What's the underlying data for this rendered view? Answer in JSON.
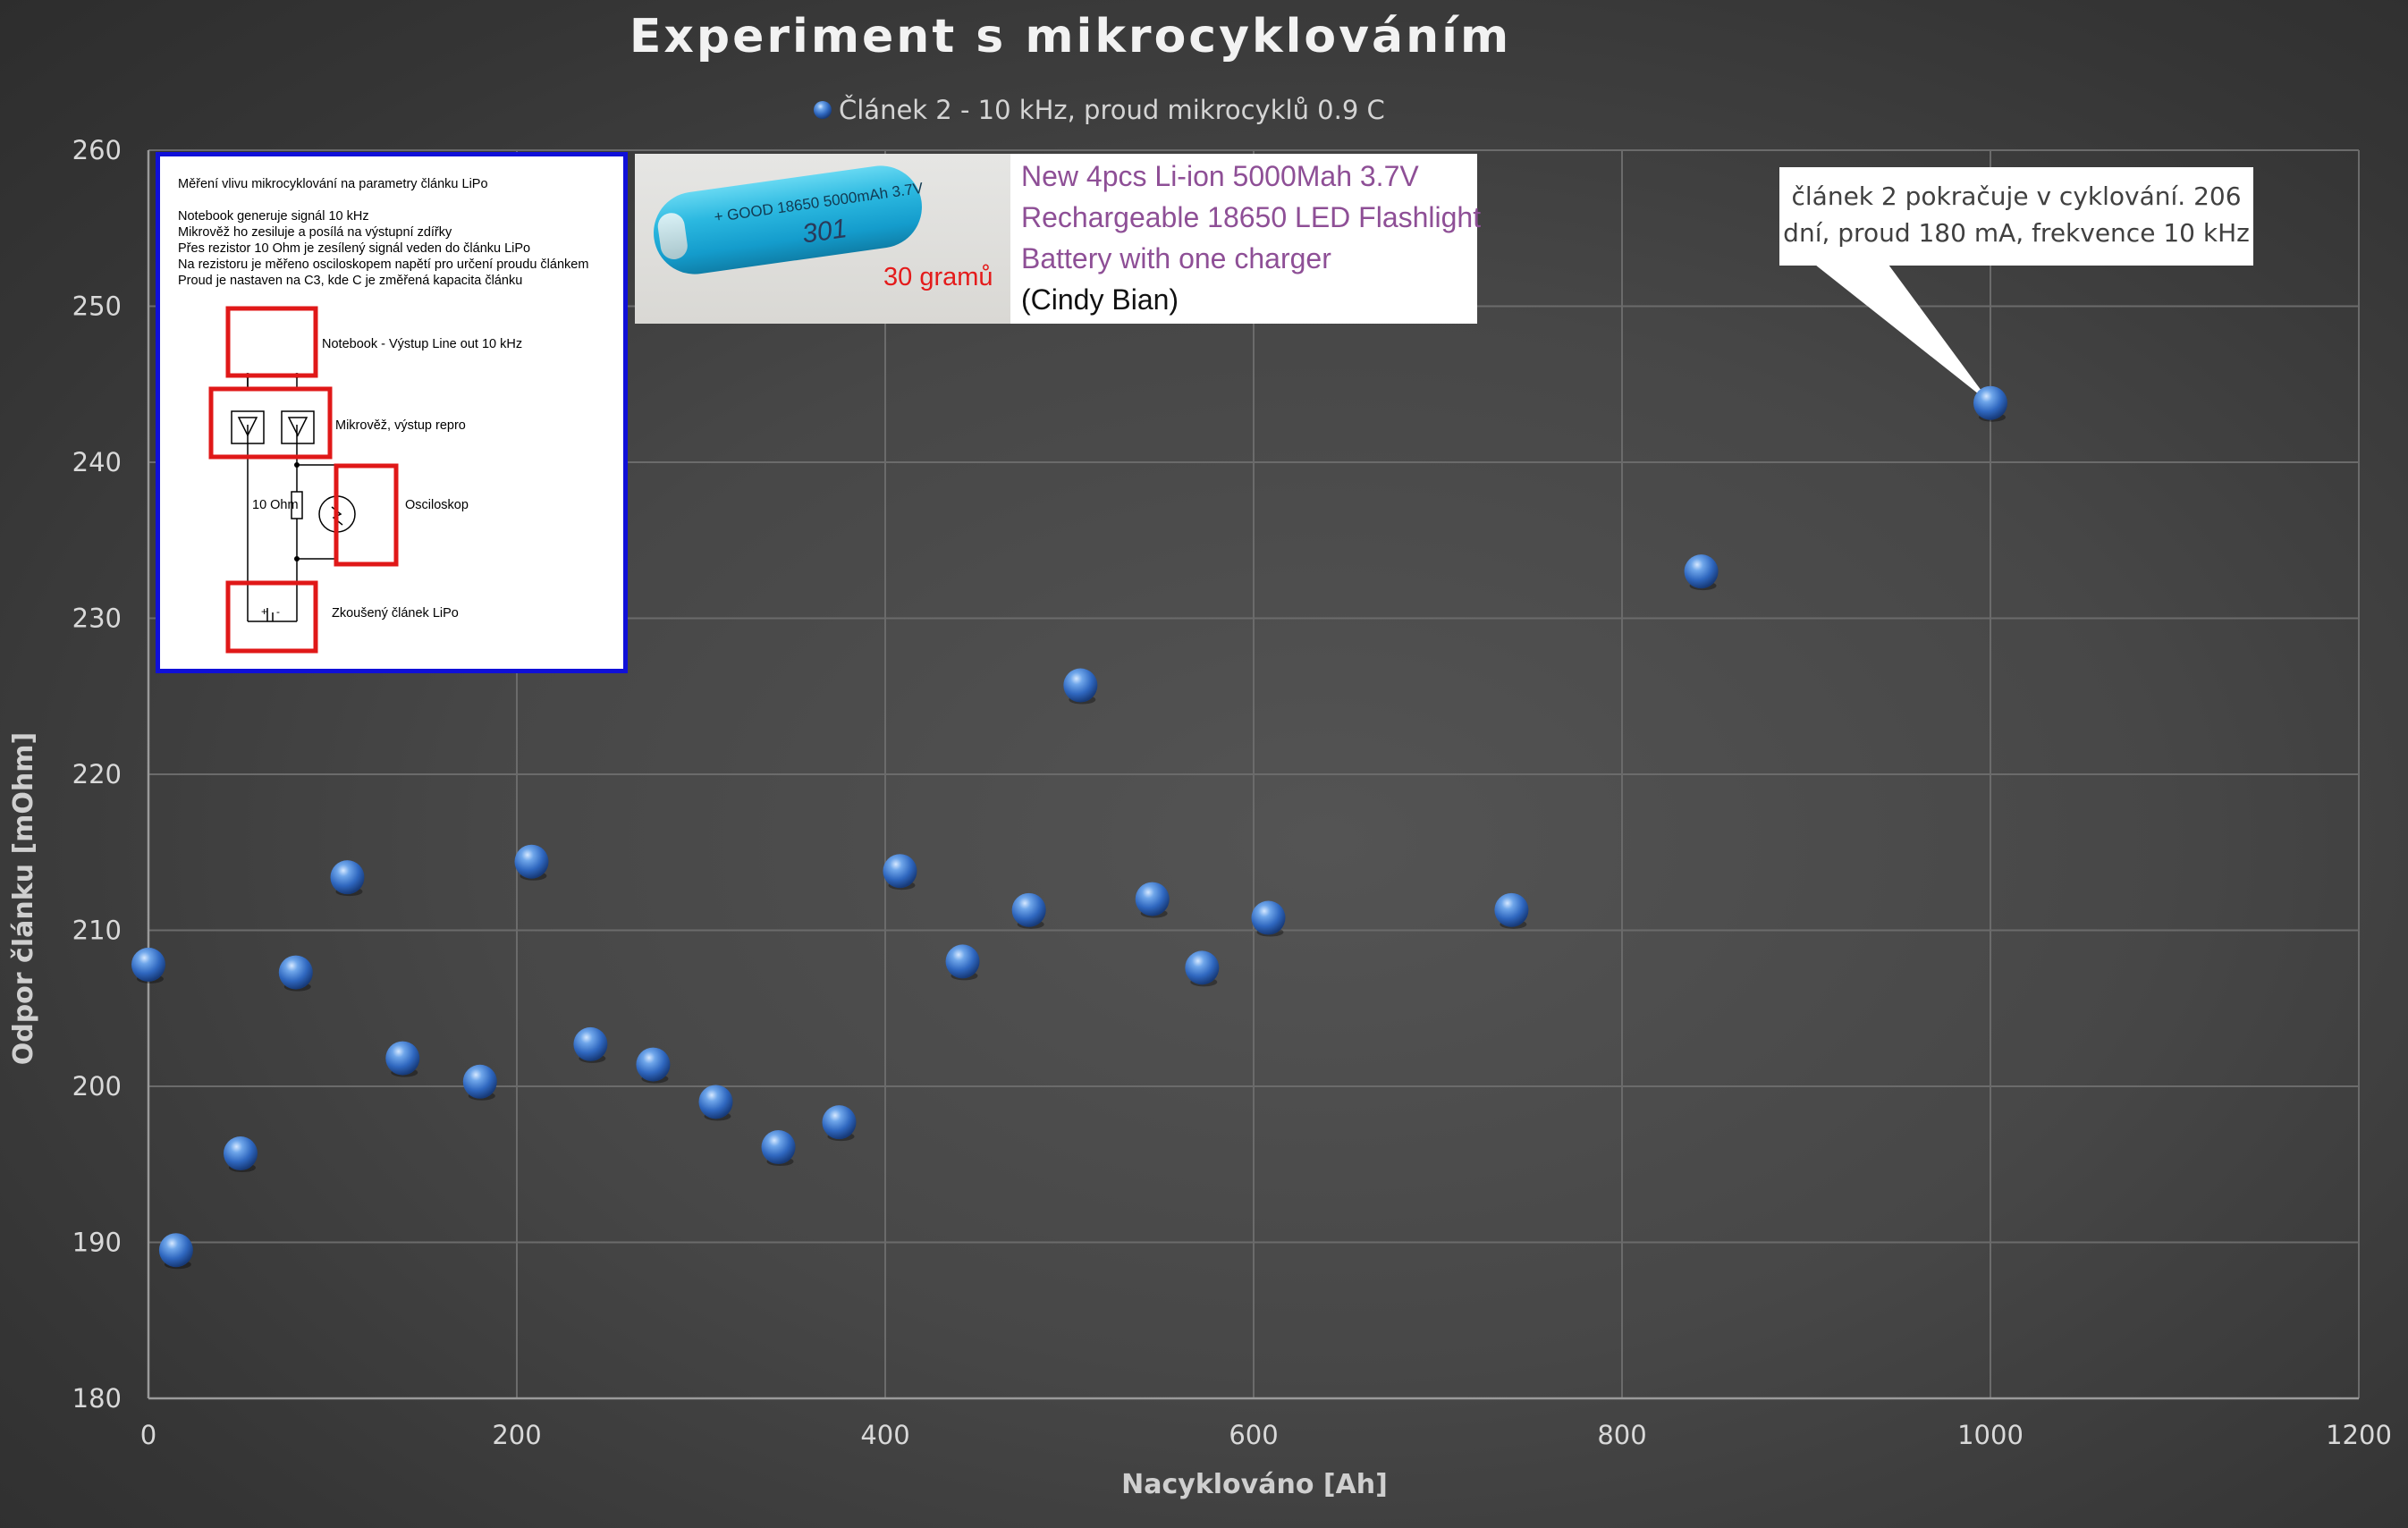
{
  "chart_data": {
    "type": "scatter",
    "title": "Experiment s mikrocyklováním",
    "xlabel": "Nacyklováno [Ah]",
    "ylabel": "Odpor článku [mOhm]",
    "xlim": [
      0,
      1200
    ],
    "ylim": [
      180,
      260
    ],
    "x_ticks": [
      "0",
      "200",
      "400",
      "600",
      "800",
      "1000",
      "1200"
    ],
    "y_ticks": [
      "180",
      "190",
      "200",
      "210",
      "220",
      "230",
      "240",
      "250",
      "260"
    ],
    "grid": true,
    "legend_position": "top-center",
    "series": [
      {
        "name": "Článek 2 - 10 kHz, proud mikrocyklů 0.9 C",
        "color": "#3a78d0",
        "points": [
          [
            0,
            207.8
          ],
          [
            15,
            189.5
          ],
          [
            50,
            195.7
          ],
          [
            80,
            207.3
          ],
          [
            108,
            213.4
          ],
          [
            138,
            201.8
          ],
          [
            180,
            200.3
          ],
          [
            208,
            214.4
          ],
          [
            240,
            202.7
          ],
          [
            274,
            201.4
          ],
          [
            308,
            199.0
          ],
          [
            342,
            196.1
          ],
          [
            375,
            197.7
          ],
          [
            408,
            213.8
          ],
          [
            442,
            208.0
          ],
          [
            478,
            211.3
          ],
          [
            506,
            225.7
          ],
          [
            545,
            212.0
          ],
          [
            572,
            207.6
          ],
          [
            608,
            210.8
          ],
          [
            740,
            211.3
          ],
          [
            843,
            233.0
          ],
          [
            1000,
            243.8
          ]
        ]
      }
    ],
    "annotation": {
      "lines": [
        "článek 2 pokračuje v cyklování. 206",
        "dní, proud 180 mA, frekvence 10 kHz"
      ],
      "points_to": [
        1000,
        243.8
      ]
    }
  },
  "schematic": {
    "title": "Měření vlivu mikrocyklování na parametry článku LiPo",
    "lines": [
      "Notebook generuje signál 10 kHz",
      "Mikrověž ho zesiluje a posílá na výstupní zdířky",
      "Přes rezistor 10 Ohm je zesílený signál veden do článku LiPo",
      "Na rezistoru je měřeno osciloskopem napětí pro určení proudu článkem",
      "Proud je nastaven na C3, kde C je změřená kapacita článku"
    ],
    "labels": {
      "notebook": "Notebook - Výstup Line out 10 kHz",
      "amplifier": "Mikrověž, výstup repro",
      "resistor": "10 Ohm",
      "scope": "Osciloskop",
      "cell": "Zkoušený článek LiPo"
    }
  },
  "product": {
    "battery_print": "+ GOOD 18650 5000mAh 3.7V",
    "battery_handwriting": "301",
    "weight": "30 gramů",
    "description": [
      "New 4pcs Li-ion 5000Mah 3.7V",
      "Rechargeable 18650 LED Flashlight",
      "Battery with one charger"
    ],
    "author": "(Cindy Bian)"
  }
}
